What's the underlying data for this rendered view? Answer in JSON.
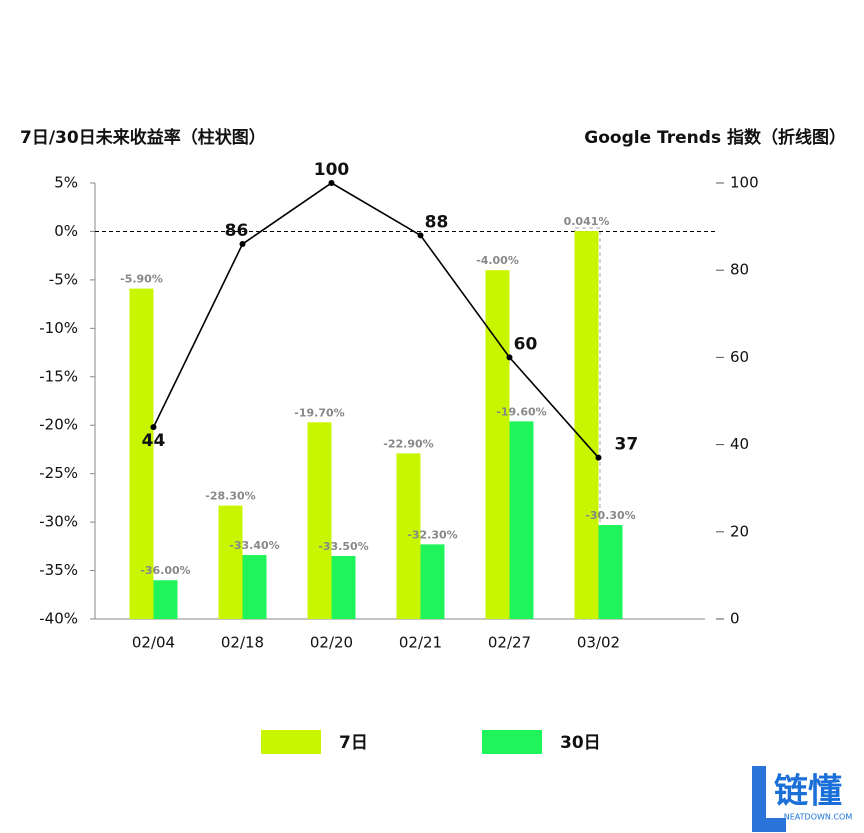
{
  "chart_data": {
    "type": "bar",
    "y_label": "7日/30日未来收益率（柱状图）",
    "y2_label": "Google Trends 指数（折线图）",
    "categories": [
      "02/04",
      "02/18",
      "02/20",
      "02/21",
      "02/27",
      "03/02"
    ],
    "series": [
      {
        "name": "7日",
        "color": "#c8f500",
        "values": [
          -5.9,
          -28.3,
          -19.7,
          -22.9,
          -4.0,
          0.041
        ],
        "value_labels": [
          "-5.90%",
          "-28.30%",
          "-19.70%",
          "-22.90%",
          "-4.00%",
          "0.041%"
        ]
      },
      {
        "name": "30日",
        "color": "#1ff55a",
        "values": [
          -36.0,
          -33.4,
          -33.5,
          -32.3,
          -19.6,
          -30.3
        ],
        "value_labels": [
          "-36.00%",
          "-33.40%",
          "-33.50%",
          "-32.30%",
          "-19.60%",
          "-30.30%"
        ]
      },
      {
        "type": "line",
        "axis": "y2",
        "color": "#000000",
        "values": [
          44,
          86,
          100,
          88,
          60,
          37
        ]
      }
    ],
    "ylim": [
      -40,
      5
    ],
    "yticks": [
      {
        "value": 5,
        "label": "5%"
      },
      {
        "value": 0,
        "label": "0%"
      },
      {
        "value": -5,
        "label": "-5%"
      },
      {
        "value": -10,
        "label": "-10%"
      },
      {
        "value": -15,
        "label": "-15%"
      },
      {
        "value": -20,
        "label": "-20%"
      },
      {
        "value": -25,
        "label": "-25%"
      },
      {
        "value": -30,
        "label": "-30%"
      },
      {
        "value": -35,
        "label": "-35%"
      },
      {
        "value": -40,
        "label": "-40%"
      }
    ],
    "y2lim": [
      0,
      100
    ],
    "y2ticks": [
      0,
      20,
      40,
      60,
      80,
      100
    ],
    "legend": "bottom"
  },
  "logo": {
    "text": "链懂",
    "subtext": "NEATDOWN.COM"
  }
}
